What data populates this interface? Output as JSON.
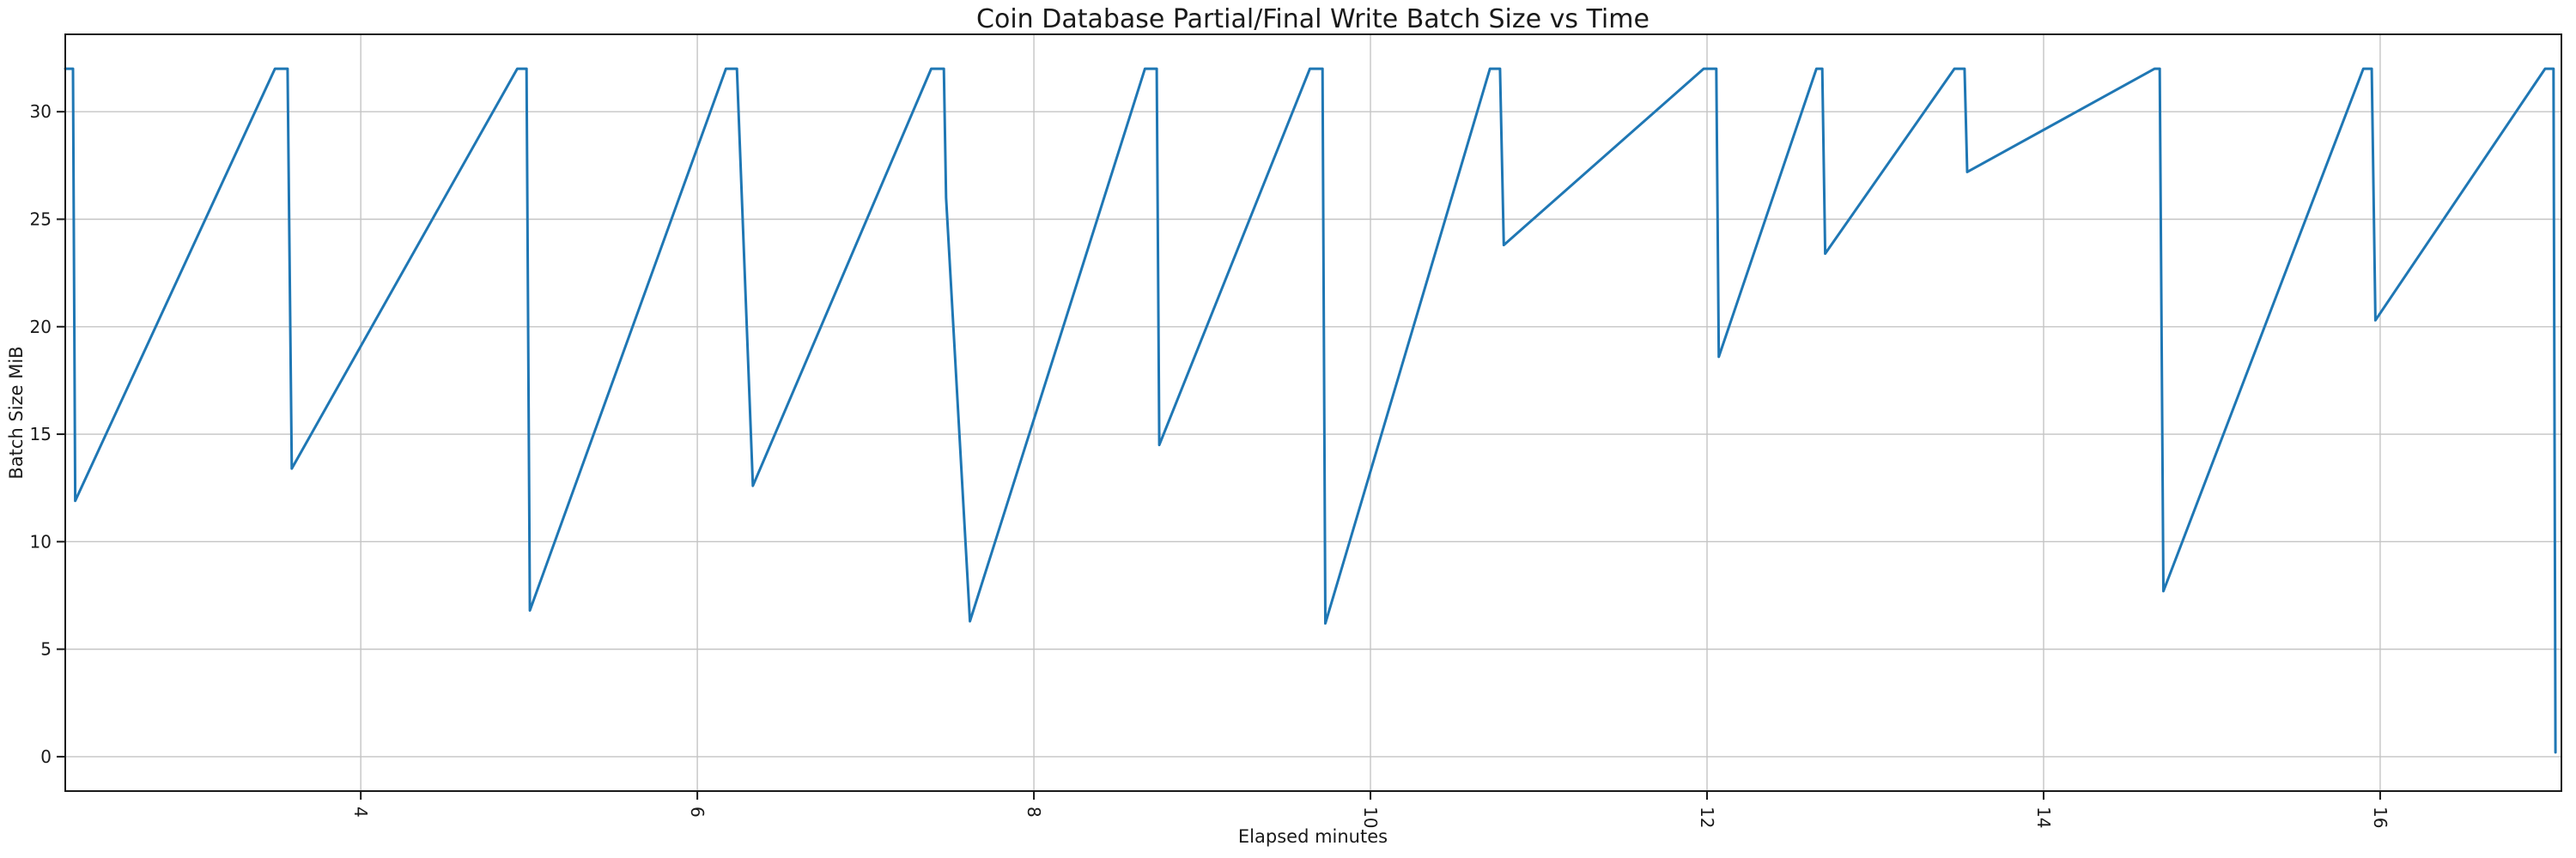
{
  "figure": {
    "title": "Coin Database Partial/Final Write Batch Size vs Time",
    "xlabel": "Elapsed minutes",
    "ylabel": "Batch Size MiB"
  },
  "style": {
    "line_color": "#1f77b4",
    "grid_color": "#c4c4c4",
    "spine_color": "#1a1a1a",
    "tick_color": "#1a1a1a",
    "text_color": "#1a1a1a",
    "background": "#ffffff"
  },
  "chart_data": {
    "type": "line",
    "title": "Coin Database Partial/Final Write Batch Size vs Time",
    "xlabel": "Elapsed minutes",
    "ylabel": "Batch Size MiB",
    "legend": "none",
    "grid": true,
    "xlim": [
      2.244,
      17.077
    ],
    "ylim": [
      -1.6,
      33.6
    ],
    "x_ticks": [
      4,
      6,
      8,
      10,
      12,
      14,
      16
    ],
    "y_ticks": [
      0,
      5,
      10,
      15,
      20,
      25,
      30
    ],
    "x_tick_rotation_deg": 90,
    "peak_value": 32,
    "series": [
      {
        "name": "write-batch-size-mib",
        "points": [
          [
            2.244,
            32
          ],
          [
            2.29,
            32
          ],
          [
            2.303,
            11.9
          ],
          [
            3.49,
            32
          ],
          [
            3.565,
            32
          ],
          [
            3.59,
            13.4
          ],
          [
            4.93,
            32
          ],
          [
            4.985,
            32
          ],
          [
            5.005,
            6.8
          ],
          [
            6.17,
            32
          ],
          [
            6.235,
            32
          ],
          [
            6.33,
            12.6
          ],
          [
            7.39,
            32
          ],
          [
            7.465,
            32
          ],
          [
            7.478,
            26.0
          ],
          [
            7.62,
            6.3
          ],
          [
            8.66,
            32
          ],
          [
            8.73,
            32
          ],
          [
            8.745,
            14.5
          ],
          [
            9.64,
            32
          ],
          [
            9.715,
            32
          ],
          [
            9.732,
            6.2
          ],
          [
            10.71,
            32
          ],
          [
            10.77,
            32
          ],
          [
            10.792,
            23.8
          ],
          [
            11.98,
            32
          ],
          [
            12.055,
            32
          ],
          [
            12.07,
            18.6
          ],
          [
            12.65,
            32
          ],
          [
            12.685,
            32
          ],
          [
            12.702,
            23.4
          ],
          [
            13.47,
            32
          ],
          [
            13.53,
            32
          ],
          [
            13.546,
            27.2
          ],
          [
            14.66,
            32
          ],
          [
            14.69,
            32
          ],
          [
            14.712,
            7.7
          ],
          [
            15.9,
            32
          ],
          [
            15.95,
            32
          ],
          [
            15.972,
            20.3
          ],
          [
            16.98,
            32
          ],
          [
            17.03,
            32
          ],
          [
            17.042,
            0.2
          ]
        ]
      }
    ]
  }
}
